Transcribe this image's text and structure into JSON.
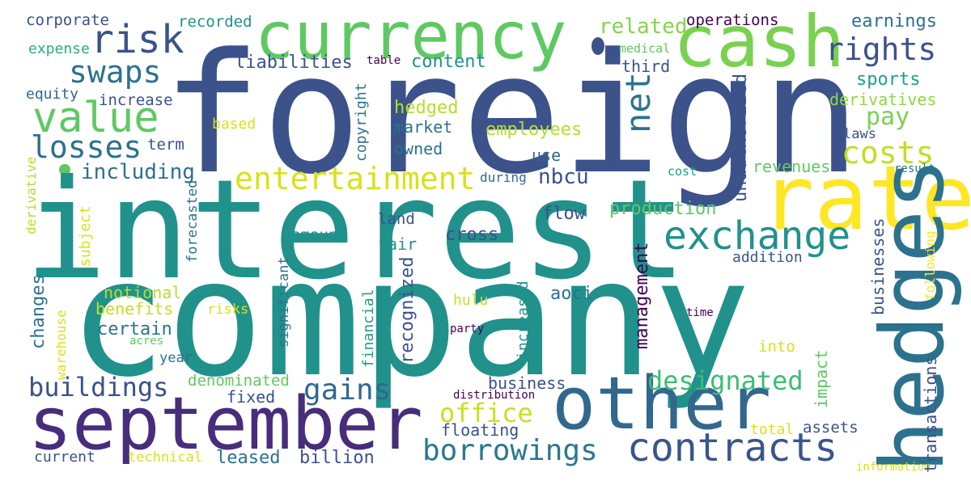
{
  "palette": {
    "background": "#ffffff",
    "dark_purple": "#440154",
    "indigo": "#472d7b",
    "slate_blue": "#3b528b",
    "steel_blue": "#2c728e",
    "teal": "#21918c",
    "sea_green": "#28ae80",
    "green": "#5ec962",
    "lime": "#addc30",
    "yellow": "#fde725"
  },
  "words": [
    {
      "text": "foreign",
      "color": "#3b528b"
    },
    {
      "text": "interest",
      "color": "#21918c"
    },
    {
      "text": "company",
      "color": "#21918c"
    },
    {
      "text": "currency",
      "color": "#5ec962"
    },
    {
      "text": "cash",
      "color": "#7ad151"
    },
    {
      "text": "rate",
      "color": "#fde725"
    },
    {
      "text": "hedges",
      "color": "#2c728e"
    },
    {
      "text": "september",
      "color": "#472d7b"
    },
    {
      "text": "other",
      "color": "#31688e"
    },
    {
      "text": "risk",
      "color": "#3b528b"
    },
    {
      "text": "value",
      "color": "#5ec962"
    },
    {
      "text": "rights",
      "color": "#3b528b"
    },
    {
      "text": "swaps",
      "color": "#2c728e"
    },
    {
      "text": "losses",
      "color": "#2c728e"
    },
    {
      "text": "entertainment",
      "color": "#d8e219"
    },
    {
      "text": "exchange",
      "color": "#21918c"
    },
    {
      "text": "costs",
      "color": "#c2df23"
    },
    {
      "text": "net",
      "color": "#2c728e"
    },
    {
      "text": "contracts",
      "color": "#39568c"
    },
    {
      "text": "borrowings",
      "color": "#2a788e"
    },
    {
      "text": "designated",
      "color": "#3dbc74"
    },
    {
      "text": "buildings",
      "color": "#3b528b"
    },
    {
      "text": "gains",
      "color": "#31688e"
    },
    {
      "text": "office",
      "color": "#c8e020"
    },
    {
      "text": "including",
      "color": "#2c728e"
    },
    {
      "text": "related",
      "color": "#84d44b"
    },
    {
      "text": "corporate",
      "color": "#3b528b"
    },
    {
      "text": "recorded",
      "color": "#21918c"
    },
    {
      "text": "operations",
      "color": "#440154"
    },
    {
      "text": "earnings",
      "color": "#2c728e"
    },
    {
      "text": "expense",
      "color": "#28ae80"
    },
    {
      "text": "medical",
      "color": "#5ec962"
    },
    {
      "text": "table",
      "color": "#440154"
    },
    {
      "text": "liabilities",
      "color": "#3b528b"
    },
    {
      "text": "content",
      "color": "#21918c"
    },
    {
      "text": "third",
      "color": "#3b528b"
    },
    {
      "text": "sports",
      "color": "#1fa187"
    },
    {
      "text": "derivatives",
      "color": "#8fd744"
    },
    {
      "text": "equity",
      "color": "#31688e"
    },
    {
      "text": "increase",
      "color": "#3b528b"
    },
    {
      "text": "hedged",
      "color": "#b5de2b"
    },
    {
      "text": "pay",
      "color": "#7ad151"
    },
    {
      "text": "based",
      "color": "#d8e219"
    },
    {
      "text": "market",
      "color": "#2c728e"
    },
    {
      "text": "employees",
      "color": "#b5de2b"
    },
    {
      "text": "laws",
      "color": "#3b528b"
    },
    {
      "text": "owned",
      "color": "#2c728e"
    },
    {
      "text": "term",
      "color": "#3b528b"
    },
    {
      "text": "use",
      "color": "#31688e"
    },
    {
      "text": "revenues",
      "color": "#5ec962"
    },
    {
      "text": "cost",
      "color": "#1f9e89"
    },
    {
      "text": "result",
      "color": "#2c728e"
    },
    {
      "text": "during",
      "color": "#31688e"
    },
    {
      "text": "nbcu",
      "color": "#3b528b"
    },
    {
      "text": "flow",
      "color": "#3b528b"
    },
    {
      "text": "production",
      "color": "#5ec962"
    },
    {
      "text": "land",
      "color": "#3b528b"
    },
    {
      "text": "amount",
      "color": "#21918c"
    },
    {
      "text": "fair",
      "color": "#21918c"
    },
    {
      "text": "cross",
      "color": "#3b528b"
    },
    {
      "text": "addition",
      "color": "#3b528b"
    },
    {
      "text": "notional",
      "color": "#b5de2b"
    },
    {
      "text": "benefits",
      "color": "#c2df23"
    },
    {
      "text": "risks",
      "color": "#d8e219"
    },
    {
      "text": "aoci",
      "color": "#2c728e"
    },
    {
      "text": "hulu",
      "color": "#c2df23"
    },
    {
      "text": "time",
      "color": "#440154"
    },
    {
      "text": "certain",
      "color": "#2c728e"
    },
    {
      "text": "party",
      "color": "#440154"
    },
    {
      "text": "acres",
      "color": "#5ec962"
    },
    {
      "text": "year",
      "color": "#2c728e"
    },
    {
      "text": "into",
      "color": "#d8e219"
    },
    {
      "text": "denominated",
      "color": "#5ec962"
    },
    {
      "text": "business",
      "color": "#3b528b"
    },
    {
      "text": "fixed",
      "color": "#3b528b"
    },
    {
      "text": "distribution",
      "color": "#440154"
    },
    {
      "text": "floating",
      "color": "#3b528b"
    },
    {
      "text": "total",
      "color": "#d8e219"
    },
    {
      "text": "assets",
      "color": "#3b528b"
    },
    {
      "text": "current",
      "color": "#3b528b"
    },
    {
      "text": "technical",
      "color": "#d8e219"
    },
    {
      "text": "leased",
      "color": "#2c728e"
    },
    {
      "text": "billion",
      "color": "#3b528b"
    },
    {
      "text": "information",
      "color": "#d8e219"
    },
    {
      "text": "copyright",
      "color": "#2c728e"
    },
    {
      "text": "unauthorized",
      "color": "#3b528b"
    },
    {
      "text": "derivative",
      "color": "#b5de2b"
    },
    {
      "text": "forecasted",
      "color": "#2c728e"
    },
    {
      "text": "subject",
      "color": "#d8e219"
    },
    {
      "text": "changes",
      "color": "#2c728e"
    },
    {
      "text": "warehouse",
      "color": "#d8e219"
    },
    {
      "text": "significant",
      "color": "#2c728e"
    },
    {
      "text": "financial",
      "color": "#1f9e89"
    },
    {
      "text": "recognized",
      "color": "#3b528b"
    },
    {
      "text": "increased",
      "color": "#21918c"
    },
    {
      "text": "management",
      "color": "#440154"
    },
    {
      "text": "impact",
      "color": "#5ec962"
    },
    {
      "text": "businesses",
      "color": "#3b528b"
    },
    {
      "text": "transactions",
      "color": "#3b528b"
    },
    {
      "text": "following",
      "color": "#fde725"
    }
  ]
}
